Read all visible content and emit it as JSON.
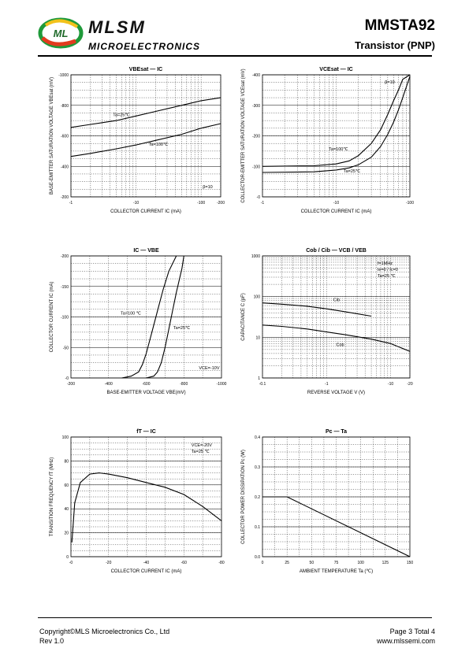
{
  "header": {
    "brand": "MLSM",
    "brand_sub": "MICROELECTRONICS",
    "part_number": "MMSTA92",
    "device_type": "Transistor  (PNP)",
    "logo_letters": "ML"
  },
  "footer": {
    "copyright": "Copyright©MLS Microelectronics Co., Ltd",
    "rev": "Rev 1.0",
    "page": "Page 3 Total 4",
    "website": "www.mlssemi.com"
  },
  "chart_data": [
    {
      "id": "vbesat",
      "type": "line",
      "title": "VBEsat — IC",
      "xlabel": "COLLECTOR CURRENT  IC  (mA)",
      "ylabel": "BASE-EMITTER SATURATION VOLTAGE  VBEsat (mV)",
      "x_scale": "log",
      "xlim": [
        -1,
        -200
      ],
      "ylim": [
        -200,
        -1000
      ],
      "x_ticks": [
        "-1",
        "-10",
        "-100",
        "-200"
      ],
      "y_ticks": [
        "-200",
        "-400",
        "-600",
        "-800",
        "-1000"
      ],
      "annotations": [
        "β=10"
      ],
      "series": [
        {
          "name": "Ta=25℃",
          "x": [
            -1,
            -2,
            -5,
            -10,
            -20,
            -50,
            -100,
            -200
          ],
          "y": [
            -655,
            -675,
            -700,
            -730,
            -760,
            -800,
            -830,
            -850
          ]
        },
        {
          "name": "Ta=100℃",
          "x": [
            -1,
            -2,
            -5,
            -10,
            -20,
            -50,
            -100,
            -200
          ],
          "y": [
            -465,
            -485,
            -515,
            -540,
            -570,
            -610,
            -650,
            -680
          ]
        }
      ]
    },
    {
      "id": "vcesat",
      "type": "line",
      "title": "VCEsat — IC",
      "xlabel": "COLLECTOR CURRENT  IC  (mA)",
      "ylabel": "COLLECTOR-EMITTER SATURATION VOLTAGE  VCEsat  (mV)",
      "x_scale": "log",
      "xlim": [
        -1,
        -100
      ],
      "ylim": [
        0,
        -400
      ],
      "x_ticks": [
        "-1",
        "-10",
        "-100"
      ],
      "y_ticks": [
        "-0",
        "-100",
        "-200",
        "-300",
        "-400"
      ],
      "annotations": [
        "β=10"
      ],
      "series": [
        {
          "name": "Ta=100℃",
          "x": [
            -1,
            -5,
            -10,
            -15,
            -20,
            -30,
            -40,
            -50,
            -60,
            -70,
            -80,
            -100
          ],
          "y": [
            -100,
            -102,
            -108,
            -118,
            -135,
            -175,
            -220,
            -270,
            -315,
            -350,
            -385,
            -420
          ]
        },
        {
          "name": "Ta=25℃",
          "x": [
            -1,
            -5,
            -10,
            -15,
            -20,
            -30,
            -40,
            -50,
            -60,
            -70,
            -80,
            -100
          ],
          "y": [
            -80,
            -82,
            -88,
            -95,
            -105,
            -130,
            -165,
            -205,
            -245,
            -285,
            -325,
            -395
          ]
        }
      ]
    },
    {
      "id": "ic_vbe",
      "type": "line",
      "title": "IC — VBE",
      "xlabel": "BASE-EMITTER VOLTAGE  VBE(mV)",
      "ylabel": "COLLECTOR CURRENT  IC (mA)",
      "xlim": [
        -200,
        -1000
      ],
      "ylim": [
        0,
        -200
      ],
      "x_ticks": [
        "-200",
        "-400",
        "-600",
        "-800",
        "-1000"
      ],
      "y_ticks": [
        "-0",
        "-50",
        "-100",
        "-150",
        "-200"
      ],
      "annotations": [
        "VCE=-10V"
      ],
      "series": [
        {
          "name": "Ta=100 ℃",
          "x": [
            -470,
            -520,
            -560,
            -580,
            -600,
            -630,
            -660,
            -690,
            -720,
            -760
          ],
          "y": [
            0,
            -3,
            -10,
            -22,
            -40,
            -75,
            -110,
            -145,
            -175,
            -205
          ]
        },
        {
          "name": "Ta=25℃",
          "x": [
            -600,
            -640,
            -660,
            -680,
            -700,
            -720,
            -740,
            -760,
            -790,
            -800
          ],
          "y": [
            0,
            -3,
            -10,
            -25,
            -50,
            -80,
            -110,
            -140,
            -180,
            -200
          ]
        }
      ]
    },
    {
      "id": "cap",
      "type": "line",
      "title": "Cob / Cib — VCB / VEB",
      "xlabel": "REVERSE  VOLTAGE   V   (V)",
      "ylabel": "CAPACITANCE   C    (pF)",
      "x_scale": "log",
      "y_scale": "log",
      "xlim": [
        -0.1,
        -20
      ],
      "ylim": [
        1,
        1000
      ],
      "x_ticks": [
        "-0.1",
        "-1",
        "-10",
        "-20"
      ],
      "y_ticks": [
        "1",
        "10",
        "100",
        "1000"
      ],
      "annotations": [
        "f=1MHz",
        "Ie=0 / Ic=0",
        "Ta=25 ℃"
      ],
      "series": [
        {
          "name": "Cib",
          "x": [
            -0.1,
            -0.2,
            -0.5,
            -1,
            -2,
            -5
          ],
          "y": [
            70,
            65,
            58,
            50,
            42,
            33
          ]
        },
        {
          "name": "Cob",
          "x": [
            -0.1,
            -0.2,
            -0.5,
            -1,
            -2,
            -5,
            -10,
            -20
          ],
          "y": [
            20,
            18.5,
            16,
            13.5,
            11.5,
            9,
            7,
            4.5
          ]
        }
      ]
    },
    {
      "id": "ft",
      "type": "line",
      "title": "fT — IC",
      "xlabel": "COLLECTOR CURRENT  IC   (mA)",
      "ylabel": "TRANSITION FREQUENCY   fT   (MHz)",
      "xlim": [
        0,
        -80
      ],
      "ylim": [
        0,
        100
      ],
      "x_ticks": [
        "-0",
        "-20",
        "-40",
        "-60",
        "-80"
      ],
      "y_ticks": [
        "0",
        "20",
        "40",
        "60",
        "80",
        "100"
      ],
      "annotations": [
        "VCE=-20V",
        "Ta=25 ℃"
      ],
      "series": [
        {
          "name": "fT",
          "x": [
            -0.5,
            -2,
            -5,
            -10,
            -15,
            -20,
            -30,
            -40,
            -50,
            -60,
            -70,
            -80
          ],
          "y": [
            12,
            45,
            62,
            69,
            70,
            69,
            66,
            62,
            58,
            52,
            42,
            30
          ]
        }
      ]
    },
    {
      "id": "pc",
      "type": "line",
      "title": "Pc — Ta",
      "xlabel": "AMBIENT TEMPERATURE   Ta   (℃)",
      "ylabel": "COLLECTOR POWER DISSIPATION   Pc   (W)",
      "xlim": [
        0,
        150
      ],
      "ylim": [
        0,
        0.4
      ],
      "x_ticks": [
        "0",
        "25",
        "50",
        "75",
        "100",
        "125",
        "150"
      ],
      "y_ticks": [
        "0.0",
        "0.1",
        "0.2",
        "0.3",
        "0.4"
      ],
      "series": [
        {
          "name": "Pc",
          "x": [
            0,
            25,
            150
          ],
          "y": [
            0.2,
            0.2,
            0
          ]
        }
      ]
    }
  ]
}
